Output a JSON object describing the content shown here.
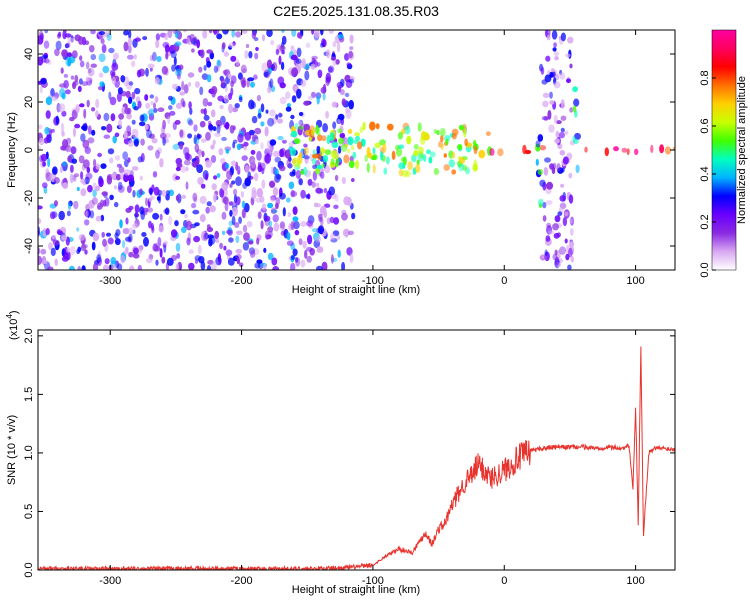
{
  "title": "C2E5.2025.131.08.35.R03",
  "chart_data": [
    {
      "type": "heatmap",
      "xlabel": "Height of straight line (km)",
      "ylabel": "Frequency (Hz)",
      "xlim": [
        -355,
        130
      ],
      "ylim": [
        -50,
        50
      ],
      "xticks": [
        -300,
        -200,
        -100,
        0,
        100
      ],
      "yticks": [
        -40,
        -20,
        0,
        20,
        40
      ],
      "colorbar": {
        "label": "Normalized spectral amplitude",
        "range": [
          0.0,
          1.0
        ],
        "ticks": [
          0.0,
          0.2,
          0.4,
          0.6,
          0.8
        ],
        "tick_labels": [
          "0.0",
          "0.2",
          "0.4",
          "0.6",
          "0.8"
        ],
        "colormap": [
          "#ffffff",
          "#d9a8f2",
          "#8a2be2",
          "#6a00ff",
          "#0000ff",
          "#00b4ff",
          "#00ffc0",
          "#40ff00",
          "#c8ff00",
          "#ffd000",
          "#ff7000",
          "#ff0000",
          "#ff0060",
          "#ff00a0"
        ]
      },
      "features": [
        {
          "x_range": [
            -355,
            -115
          ],
          "y_range": [
            -50,
            50
          ],
          "amplitude": 0.2
        },
        {
          "x_range": [
            -165,
            -10
          ],
          "y_range": [
            -10,
            10
          ],
          "amplitude": 0.6
        },
        {
          "x_range": [
            -15,
            130
          ],
          "y_range": [
            -1,
            1
          ],
          "amplitude": 0.95
        },
        {
          "x_range": [
            28,
            52
          ],
          "y_range": [
            -50,
            50
          ],
          "amplitude": 0.15
        },
        {
          "x_range": [
            25,
            28
          ],
          "y_range": [
            -30,
            10
          ],
          "amplitude": 0.4
        },
        {
          "x_range": [
            53,
            56
          ],
          "y_range": [
            -10,
            30
          ],
          "amplitude": 0.4
        }
      ]
    },
    {
      "type": "line",
      "xlabel": "Height of straight line (km)",
      "ylabel": "SNR (10 * v/v)",
      "y_multiplier": "(x10",
      "y_multiplier_exp": "4",
      "y_multiplier_close": ")",
      "xlim": [
        -355,
        130
      ],
      "ylim": [
        0,
        2.05
      ],
      "xticks": [
        -300,
        -200,
        -100,
        0,
        100
      ],
      "yticks": [
        0.0,
        0.5,
        1.0,
        1.5,
        2.0
      ],
      "ytick_labels": [
        "0.0",
        "0.5",
        "1.0",
        "1.5",
        "2.0"
      ],
      "color": "#e8332e",
      "x": [
        -355,
        -300,
        -250,
        -200,
        -150,
        -120,
        -100,
        -90,
        -80,
        -70,
        -60,
        -55,
        -50,
        -45,
        -40,
        -35,
        -30,
        -25,
        -20,
        -15,
        -10,
        -5,
        0,
        10,
        20,
        30,
        40,
        50,
        60,
        70,
        80,
        90,
        95,
        98,
        100,
        102,
        104,
        106,
        110,
        115,
        120,
        130
      ],
      "values": [
        0.01,
        0.01,
        0.01,
        0.01,
        0.01,
        0.02,
        0.04,
        0.12,
        0.18,
        0.15,
        0.32,
        0.22,
        0.35,
        0.4,
        0.55,
        0.65,
        0.75,
        0.8,
        0.9,
        0.85,
        0.78,
        0.82,
        0.85,
        0.95,
        1.02,
        1.04,
        1.05,
        1.05,
        1.05,
        1.04,
        1.05,
        1.04,
        1.06,
        0.7,
        1.4,
        0.4,
        1.9,
        0.3,
        1.0,
        1.04,
        1.04,
        1.03
      ]
    }
  ]
}
